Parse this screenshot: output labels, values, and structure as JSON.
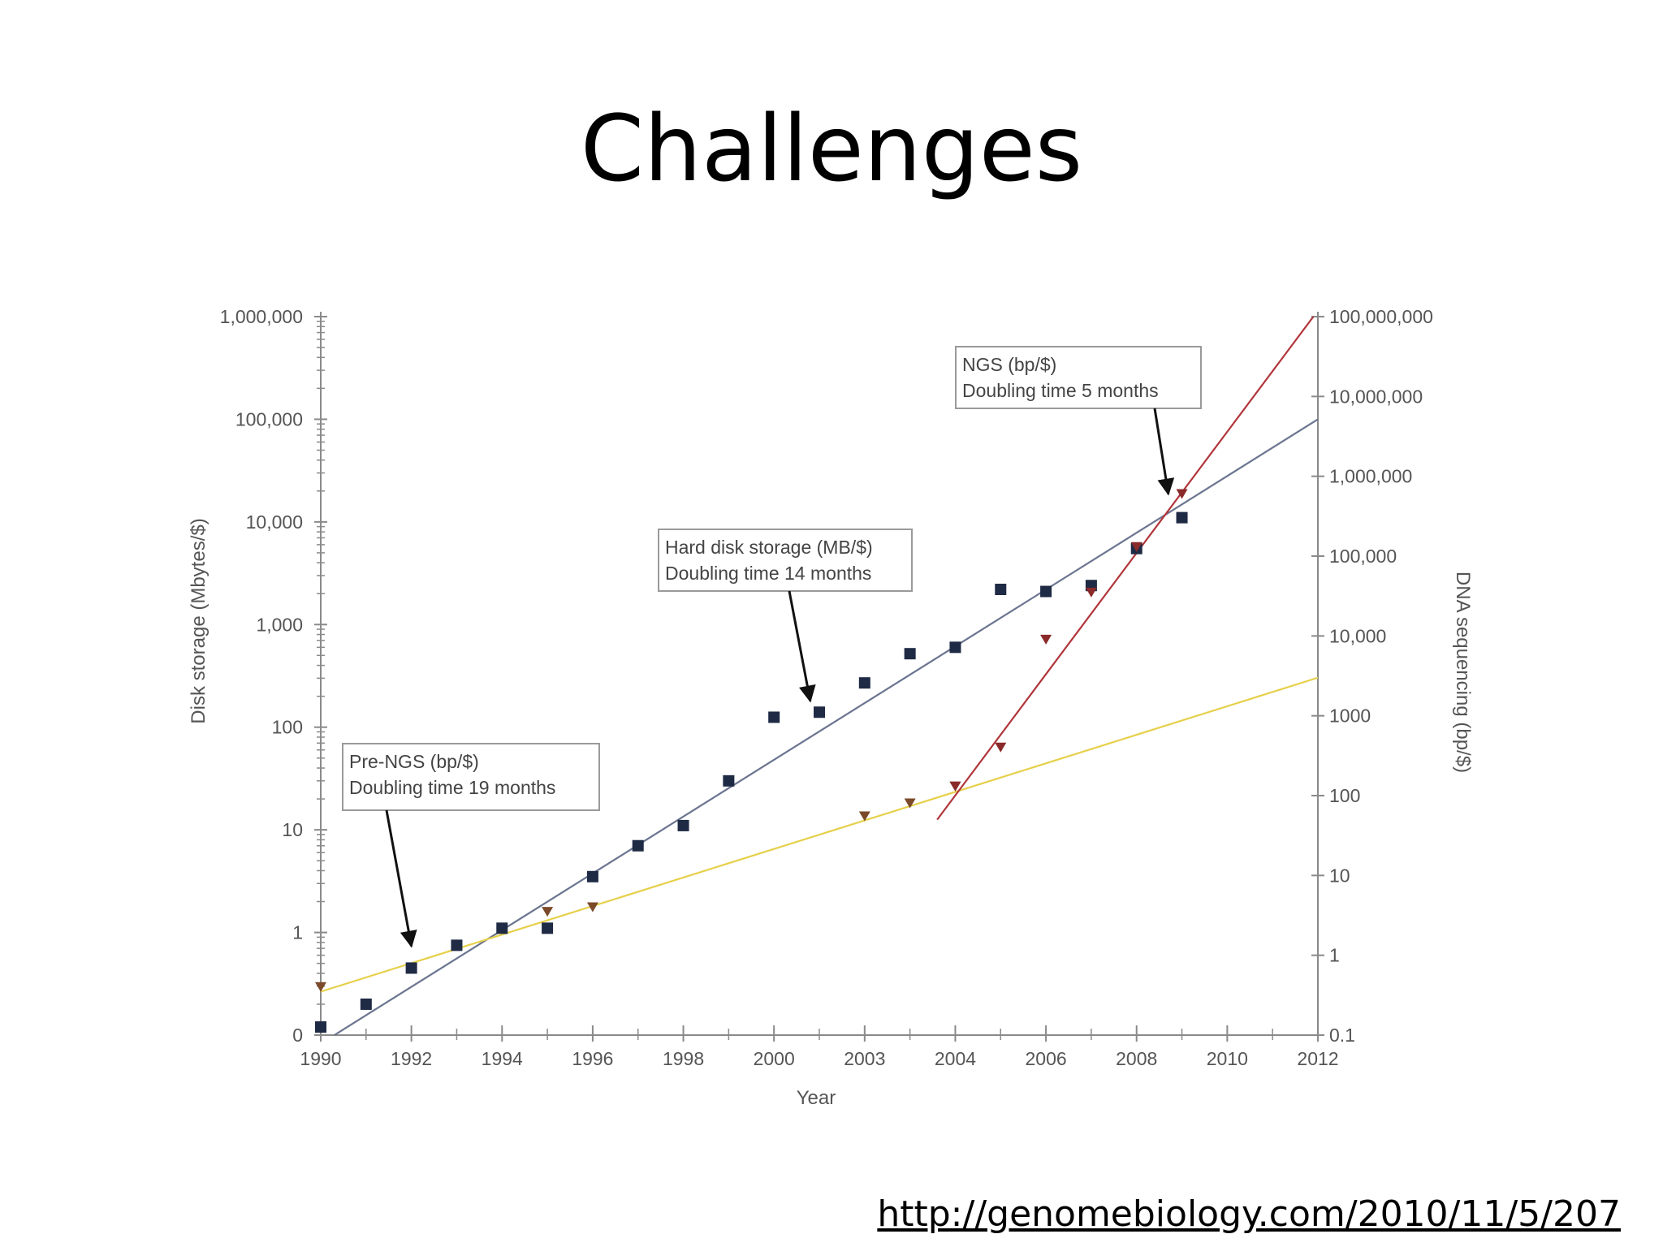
{
  "slide": {
    "title": "Challenges",
    "source_url": "http://genomebiology.com/2010/11/5/207"
  },
  "chart_data": {
    "type": "scatter",
    "title": "",
    "xlabel": "Year",
    "ylabel_left": "Disk storage (Mbytes/$)",
    "ylabel_right": "DNA sequencing (bp/$)",
    "x_ticks": [
      "1990",
      "1992",
      "1994",
      "1996",
      "1998",
      "2000",
      "2003",
      "2004",
      "2006",
      "2008",
      "2010",
      "2012"
    ],
    "y_left_ticks": [
      "0",
      "1",
      "10",
      "100",
      "1,000",
      "10,000",
      "100,000",
      "1,000,000"
    ],
    "y_right_ticks": [
      "0.1",
      "1",
      "10",
      "100",
      "1000",
      "10,000",
      "100,000",
      "1,000,000",
      "10,000,000",
      "100,000,000"
    ],
    "y_left_scale": "log",
    "y_right_scale": "log",
    "series": [
      {
        "name": "Hard disk storage (MB/$)",
        "axis": "left",
        "marker": "square",
        "color": "#1f2a44",
        "points": [
          {
            "x": 1990,
            "y": 0.12
          },
          {
            "x": 1991,
            "y": 0.2
          },
          {
            "x": 1992,
            "y": 0.45
          },
          {
            "x": 1993,
            "y": 0.75
          },
          {
            "x": 1994,
            "y": 1.1
          },
          {
            "x": 1995,
            "y": 1.1
          },
          {
            "x": 1996,
            "y": 3.5
          },
          {
            "x": 1997,
            "y": 7
          },
          {
            "x": 1998,
            "y": 11
          },
          {
            "x": 1999,
            "y": 30
          },
          {
            "x": 2000,
            "y": 125
          },
          {
            "x": 2001,
            "y": 140
          },
          {
            "x": 2002,
            "y": 270
          },
          {
            "x": 2003,
            "y": 520
          },
          {
            "x": 2004,
            "y": 600
          },
          {
            "x": 2005,
            "y": 2200
          },
          {
            "x": 2006,
            "y": 2100
          },
          {
            "x": 2007,
            "y": 2400
          },
          {
            "x": 2008,
            "y": 5500
          },
          {
            "x": 2009,
            "y": 11000
          }
        ]
      },
      {
        "name": "Pre-NGS (bp/$)",
        "axis": "right",
        "marker": "triangle-down",
        "color": "#7a4a2a",
        "points": [
          {
            "x": 1990,
            "y": 0.4
          },
          {
            "x": 1995,
            "y": 3.5
          },
          {
            "x": 1996,
            "y": 4
          },
          {
            "x": 2002,
            "y": 55
          },
          {
            "x": 2003,
            "y": 80
          },
          {
            "x": 2004,
            "y": 130
          }
        ]
      },
      {
        "name": "NGS (bp/$)",
        "axis": "right",
        "marker": "triangle-down",
        "color": "#8a2a2a",
        "points": [
          {
            "x": 2004,
            "y": 130
          },
          {
            "x": 2005,
            "y": 400
          },
          {
            "x": 2006,
            "y": 9000
          },
          {
            "x": 2007,
            "y": 35000
          },
          {
            "x": 2008,
            "y": 130000
          },
          {
            "x": 2009,
            "y": 600000
          }
        ]
      }
    ],
    "trendlines": [
      {
        "name": "hard-disk-trend",
        "axis": "left",
        "color": "#6b7590",
        "from": {
          "x": 1990.3,
          "y": 0.1
        },
        "to": {
          "x": 2012,
          "y": 100000
        }
      },
      {
        "name": "pre-ngs-trend",
        "axis": "right",
        "color": "#e6d04a",
        "from": {
          "x": 1990,
          "y": 0.35
        },
        "to": {
          "x": 2012,
          "y": 3000
        }
      },
      {
        "name": "ngs-trend",
        "axis": "right",
        "color": "#b0353a",
        "from": {
          "x": 2003.6,
          "y": 50
        },
        "to": {
          "x": 2011.9,
          "y": 100000000
        }
      }
    ],
    "annotations": [
      {
        "name": "annotation-pre-ngs",
        "lines": [
          "Pre-NGS (bp/$)",
          "Doubling time 19 months"
        ],
        "target": {
          "x": 1992,
          "y": 1.3,
          "axis": "right"
        }
      },
      {
        "name": "annotation-hard-disk",
        "lines": [
          "Hard disk storage (MB/$)",
          "Doubling time 14 months"
        ],
        "target": {
          "x": 2000.8,
          "y": 180,
          "axis": "left"
        }
      },
      {
        "name": "annotation-ngs",
        "lines": [
          "NGS (bp/$)",
          "Doubling time 5 months"
        ],
        "target": {
          "x": 2008.7,
          "y": 600000,
          "axis": "right"
        }
      }
    ],
    "grid": false,
    "legend": "none"
  }
}
